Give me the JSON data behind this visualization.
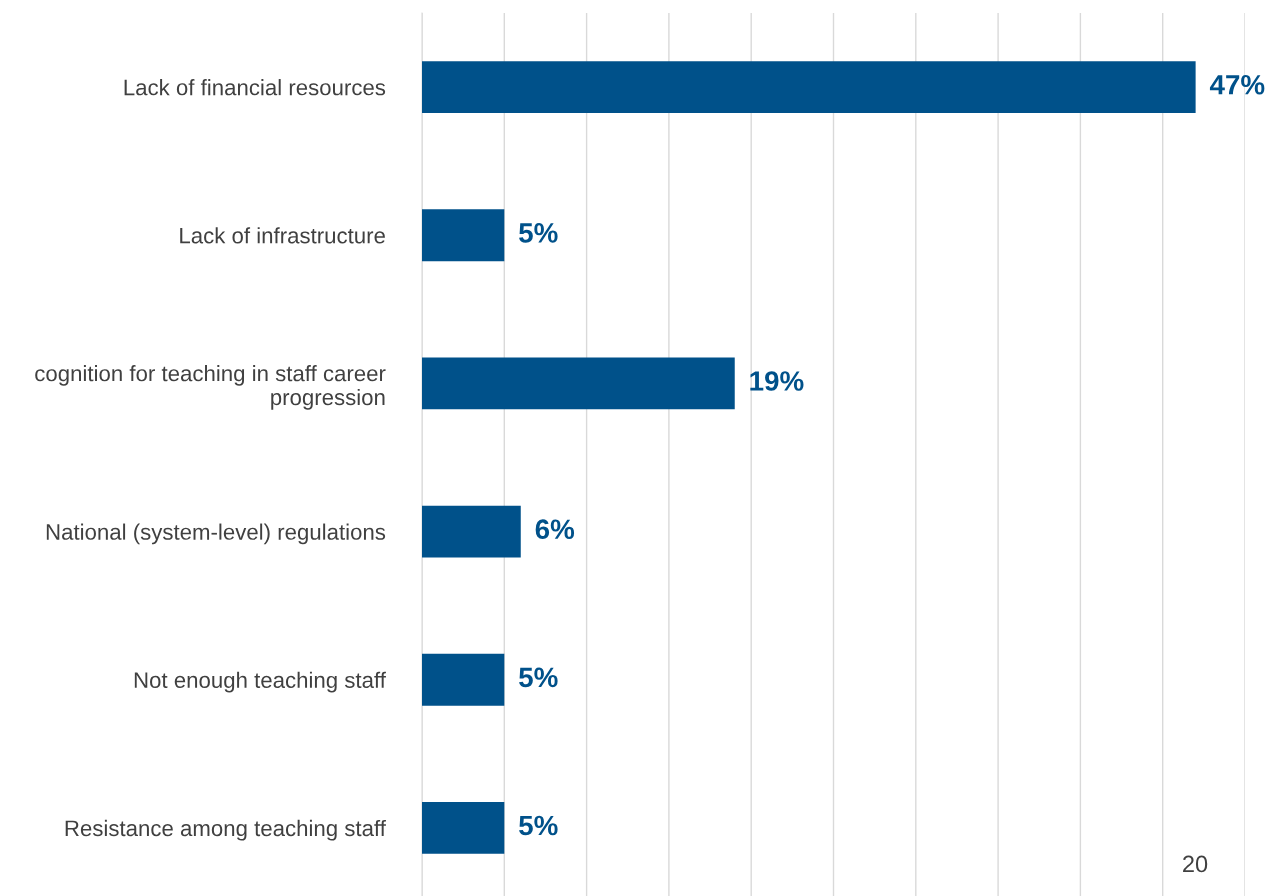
{
  "chart_data": {
    "type": "bar",
    "orientation": "horizontal",
    "categories": [
      "Lack of financial resources",
      "Lack of infrastructure",
      "cognition for teaching in staff career\nprogression",
      "National (system-level) regulations",
      "Not enough teaching staff",
      "Resistance among teaching staff"
    ],
    "values": [
      47,
      5,
      19,
      6,
      5,
      5
    ],
    "value_labels": [
      "47%",
      "5%",
      "19%",
      "6%",
      "5%",
      "5%"
    ],
    "color": "#00518a",
    "xlim": [
      0,
      50
    ],
    "xticks": [
      {
        "value": 0,
        "label": null
      },
      {
        "value": 5,
        "label": null
      },
      {
        "value": 10,
        "label": null
      },
      {
        "value": 15,
        "label": null
      },
      {
        "value": 20,
        "label": null
      },
      {
        "value": 25,
        "label": null
      },
      {
        "value": 30,
        "label": null
      },
      {
        "value": 35,
        "label": null
      },
      {
        "value": 40,
        "label": null
      },
      {
        "value": 45,
        "label": null
      },
      {
        "value": 50,
        "label": null
      }
    ],
    "grid": "x",
    "tick_labels": "y",
    "annotations": [
      "20"
    ]
  }
}
